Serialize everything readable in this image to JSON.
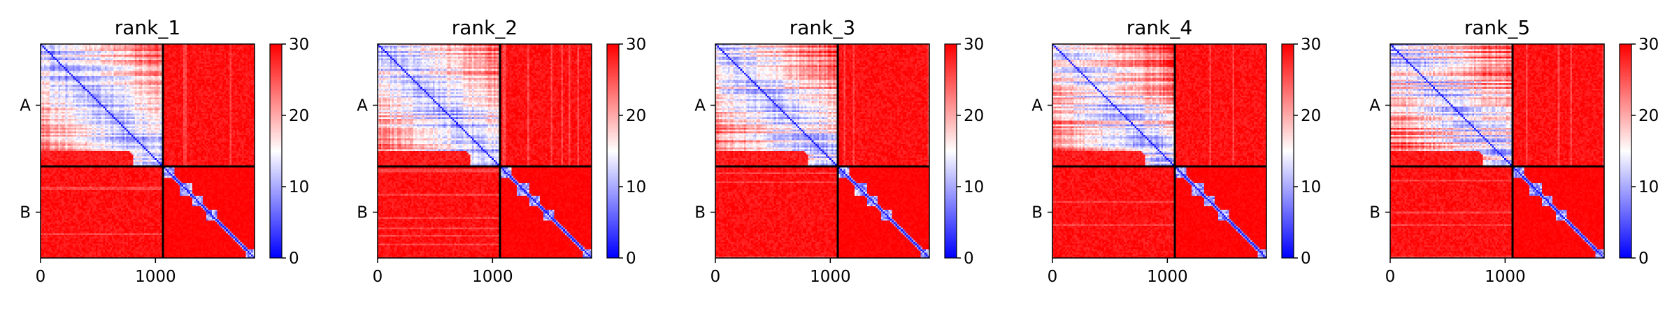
{
  "chart_data": [
    {
      "type": "heatmap",
      "title": "rank_1",
      "x_ticks": [
        "0",
        "1000"
      ],
      "x_tick_values": [
        0,
        1000
      ],
      "x_range": [
        0,
        1862
      ],
      "y_tick_labels": [
        "A",
        "B"
      ],
      "chain_boundary": 1065,
      "colorbar": {
        "range": [
          0,
          30
        ],
        "ticks": [
          "0",
          "10",
          "20",
          "30"
        ],
        "colormap": "bwr"
      },
      "grid": false
    },
    {
      "type": "heatmap",
      "title": "rank_2",
      "x_ticks": [
        "0",
        "1000"
      ],
      "x_tick_values": [
        0,
        1000
      ],
      "x_range": [
        0,
        1862
      ],
      "y_tick_labels": [
        "A",
        "B"
      ],
      "chain_boundary": 1065,
      "colorbar": {
        "range": [
          0,
          30
        ],
        "ticks": [
          "0",
          "10",
          "20",
          "30"
        ],
        "colormap": "bwr"
      },
      "grid": false
    },
    {
      "type": "heatmap",
      "title": "rank_3",
      "x_ticks": [
        "0",
        "1000"
      ],
      "x_tick_values": [
        0,
        1000
      ],
      "x_range": [
        0,
        1862
      ],
      "y_tick_labels": [
        "A",
        "B"
      ],
      "chain_boundary": 1065,
      "colorbar": {
        "range": [
          0,
          30
        ],
        "ticks": [
          "0",
          "10",
          "20",
          "30"
        ],
        "colormap": "bwr"
      },
      "grid": false
    },
    {
      "type": "heatmap",
      "title": "rank_4",
      "x_ticks": [
        "0",
        "1000"
      ],
      "x_tick_values": [
        0,
        1000
      ],
      "x_range": [
        0,
        1862
      ],
      "y_tick_labels": [
        "A",
        "B"
      ],
      "chain_boundary": 1065,
      "colorbar": {
        "range": [
          0,
          30
        ],
        "ticks": [
          "0",
          "10",
          "20",
          "30"
        ],
        "colormap": "bwr"
      },
      "grid": false
    },
    {
      "type": "heatmap",
      "title": "rank_5",
      "x_ticks": [
        "0",
        "1000"
      ],
      "x_tick_values": [
        0,
        1000
      ],
      "x_range": [
        0,
        1862
      ],
      "y_tick_labels": [
        "A",
        "B"
      ],
      "chain_boundary": 1065,
      "colorbar": {
        "range": [
          0,
          30
        ],
        "ticks": [
          "0",
          "10",
          "20",
          "30"
        ],
        "colormap": "bwr"
      },
      "grid": false
    }
  ],
  "colors": {
    "low": "#0000ff",
    "mid": "#ffffff",
    "high": "#ff0000",
    "frame": "#000000"
  }
}
